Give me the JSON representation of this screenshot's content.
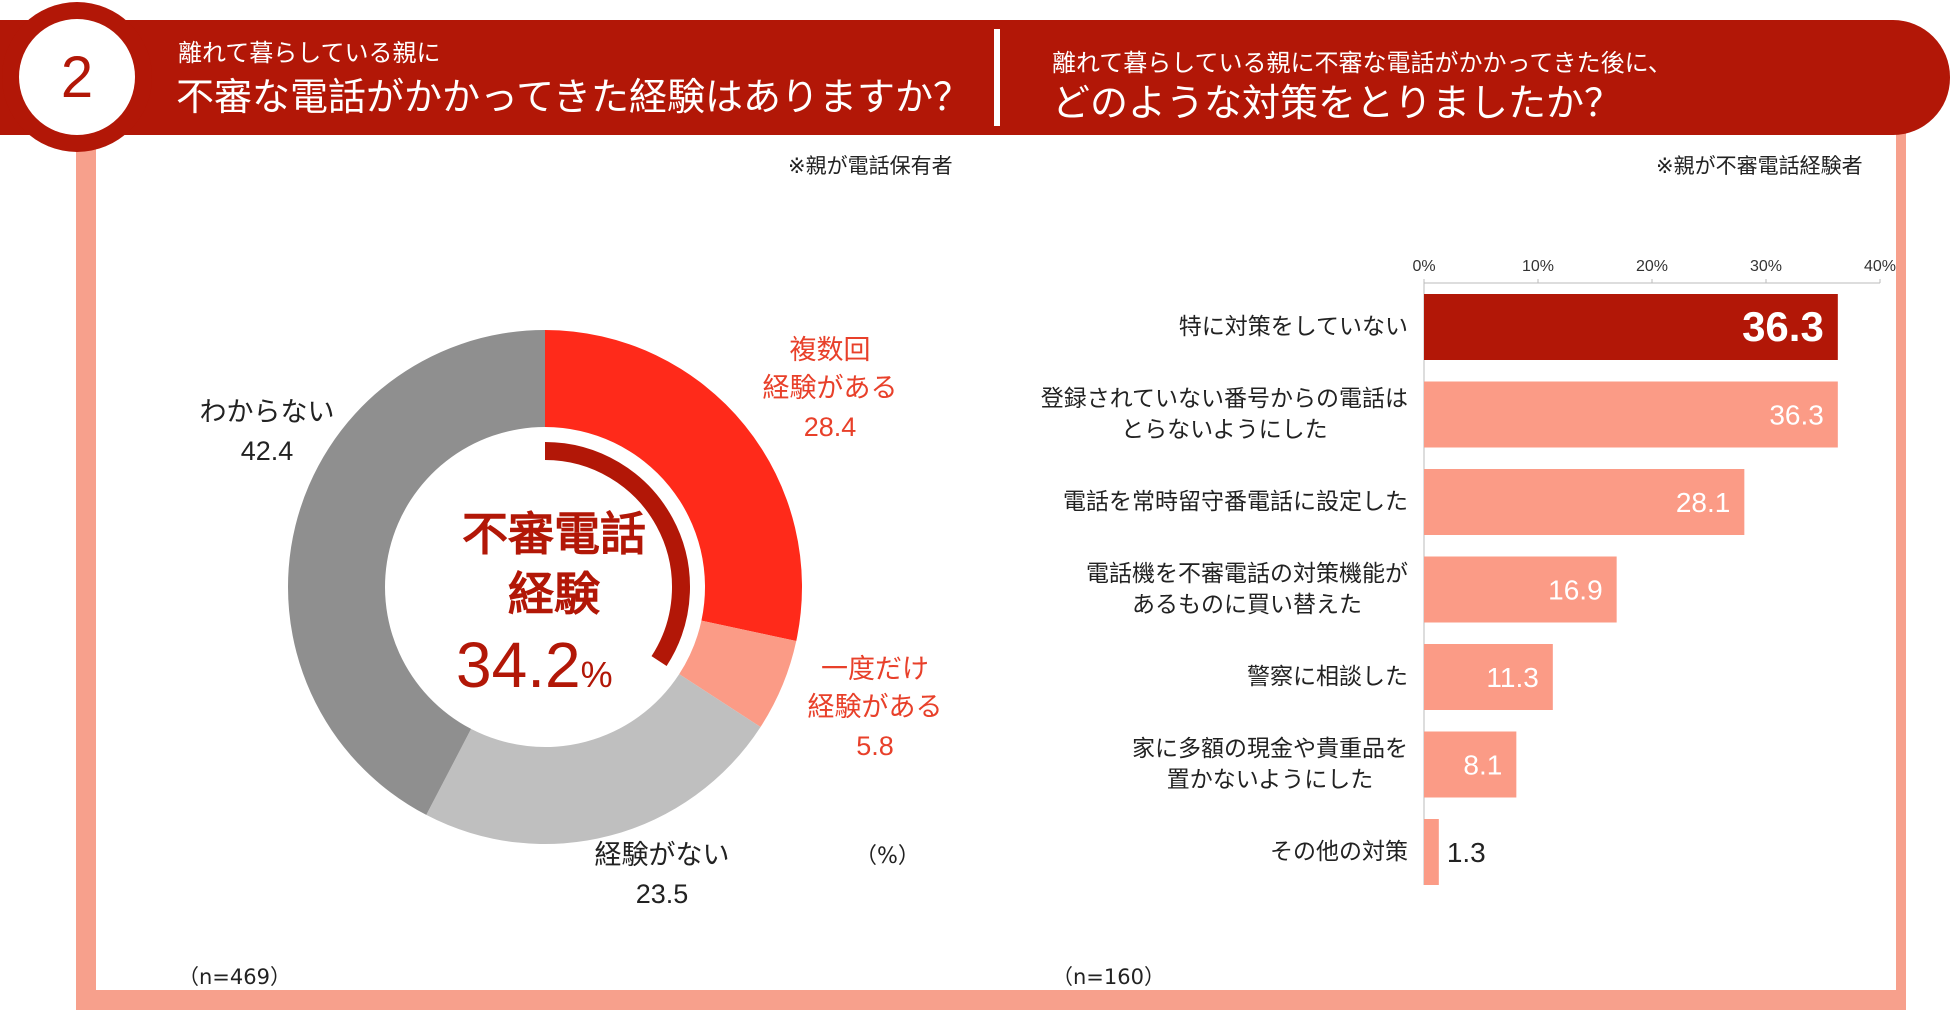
{
  "header": {
    "number": "2",
    "left_sub": "離れて暮らしている親に",
    "left_main": "不審な電話がかかってきた経験はありますか？",
    "right_sub": "離れて暮らしている親に不審な電話がかかってきた後に、",
    "right_main": "どのような対策をとりましたか？"
  },
  "notes": {
    "left": "※親が電話保有者",
    "right": "※親が不審電話経験者",
    "unit": "（%）",
    "n_left": "（n=469）",
    "n_right": "（n=160）"
  },
  "donut": {
    "center_line1": "不審電話",
    "center_line2": "経験",
    "center_value": "34.2",
    "center_unit": "%",
    "slices": [
      {
        "label_l1": "複数回",
        "label_l2": "経験がある",
        "value_text": "28.4",
        "value": 28.4,
        "color": "#ff2a1a"
      },
      {
        "label_l1": "一度だけ",
        "label_l2": "経験がある",
        "value_text": "5.8",
        "value": 5.8,
        "color": "#fb9b86"
      },
      {
        "label_l1": "経験がない",
        "value_text": "23.5",
        "value": 23.5,
        "color": "#bfbfbf"
      },
      {
        "label_l1": "わからない",
        "value_text": "42.4",
        "value": 42.4,
        "color": "#8f8f8f"
      }
    ]
  },
  "chart_data": [
    {
      "type": "pie",
      "title": "不審な電話がかかってきた経験はありますか？",
      "categories": [
        "複数回経験がある",
        "一度だけ経験がある",
        "経験がない",
        "わからない"
      ],
      "values": [
        28.4,
        5.8,
        23.5,
        42.4
      ],
      "center_label": "不審電話経験 34.2%",
      "unit": "%"
    },
    {
      "type": "bar",
      "orientation": "horizontal",
      "title": "どのような対策をとりましたか？",
      "categories": [
        "特に対策をしていない",
        "登録されていない番号からの電話はとらないようにした",
        "電話を常時留守番電話に設定した",
        "電話機を不審電話の対策機能があるものに買い替えた",
        "警察に相談した",
        "家に多額の現金や貴重品を置かないようにした",
        "その他の対策"
      ],
      "values": [
        36.3,
        36.3,
        28.1,
        16.9,
        11.3,
        8.1,
        1.3
      ],
      "xlim": [
        0,
        40
      ],
      "ticks": [
        "0%",
        "10%",
        "20%",
        "30%",
        "40%"
      ]
    }
  ],
  "bars": {
    "ticks": [
      "0%",
      "10%",
      "20%",
      "30%",
      "40%"
    ],
    "highlight_color": "#b21707",
    "bar_color": "#fb9b86",
    "items": [
      {
        "l1": "特に対策をしていない",
        "value_text": "36.3",
        "value": 36.3
      },
      {
        "l1": "登録されていない番号からの電話は",
        "l2": "とらないようにした",
        "value_text": "36.3",
        "value": 36.3
      },
      {
        "l1": "電話を常時留守番電話に設定した",
        "value_text": "28.1",
        "value": 28.1
      },
      {
        "l1": "電話機を不審電話の対策機能が",
        "l2": "あるものに買い替えた",
        "value_text": "16.9",
        "value": 16.9
      },
      {
        "l1": "警察に相談した",
        "value_text": "11.3",
        "value": 11.3
      },
      {
        "l1": "家に多額の現金や貴重品を",
        "l2": "置かないようにした",
        "value_text": "8.1",
        "value": 8.1
      },
      {
        "l1": "その他の対策",
        "value_text": "1.3",
        "value": 1.3
      }
    ]
  }
}
